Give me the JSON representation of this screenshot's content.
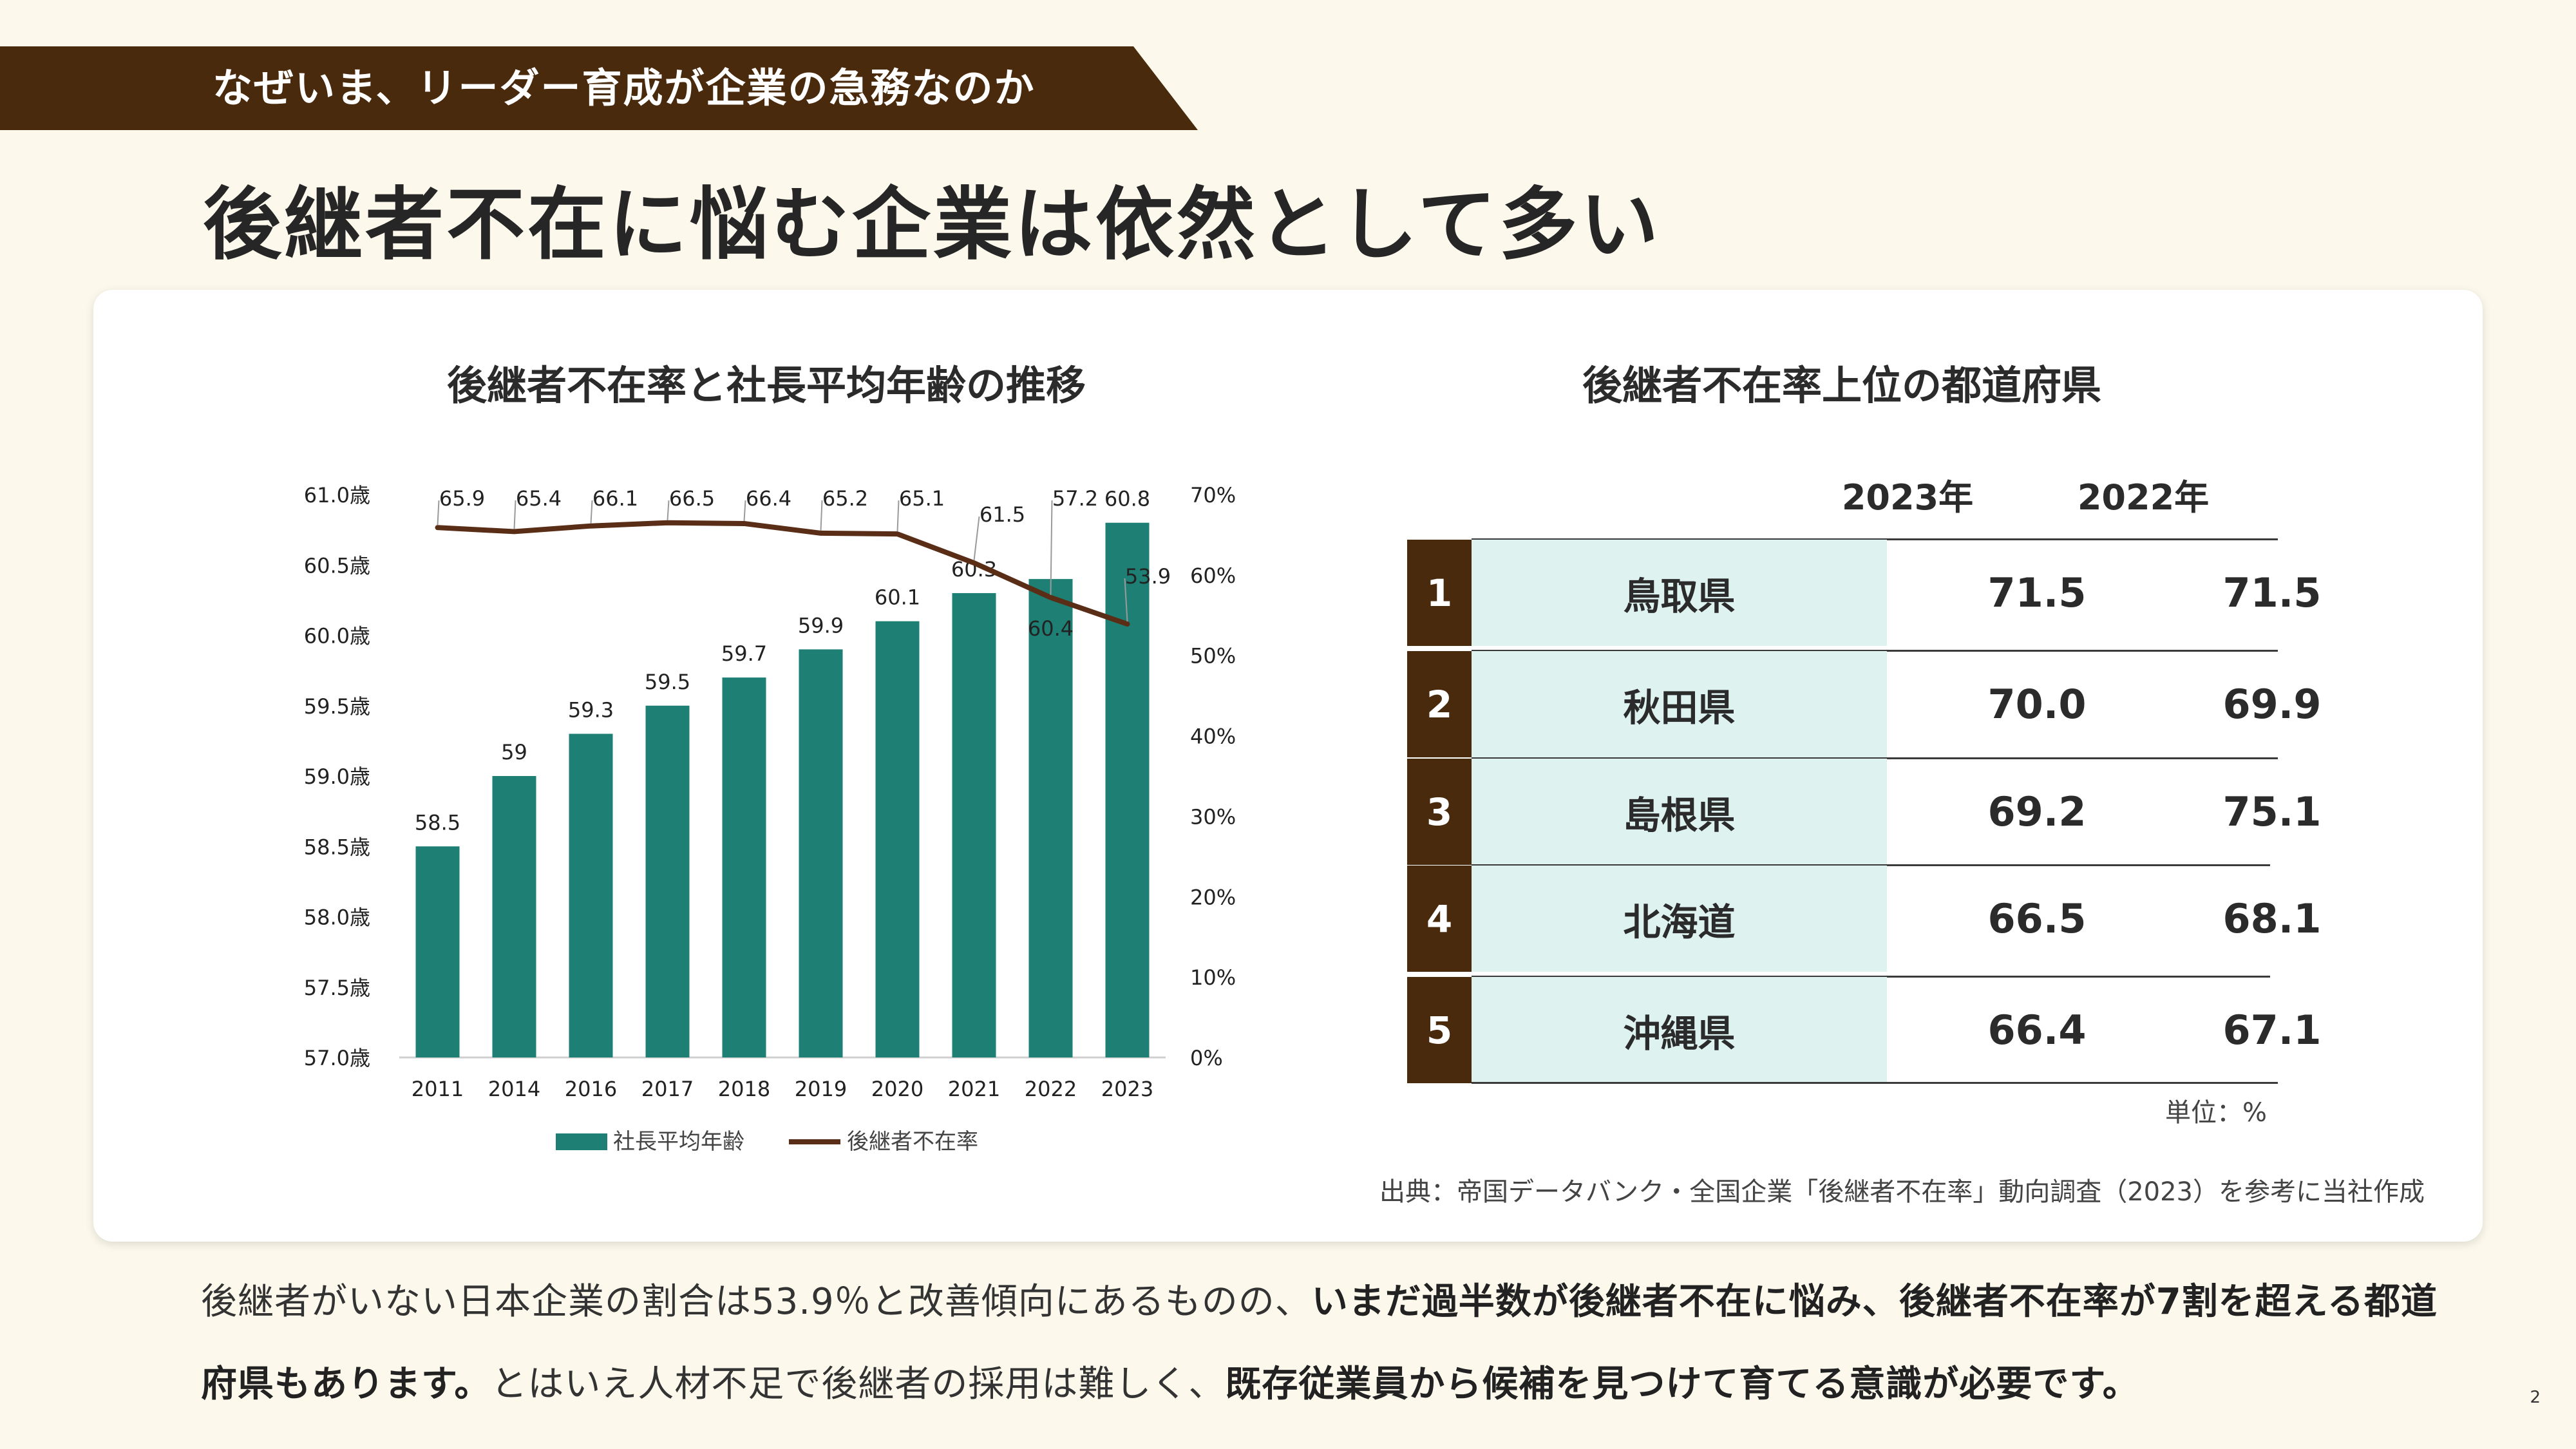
{
  "header": {
    "label": "なぜいま、リーダー育成が企業の急務なのか"
  },
  "title": "後継者不在に悩む企業は依然として多い",
  "chart_data": {
    "type": "bar+line",
    "title": "後継者不在率と社長平均年齢の推移",
    "categories": [
      "2011",
      "2014",
      "2016",
      "2017",
      "2018",
      "2019",
      "2020",
      "2021",
      "2022",
      "2023"
    ],
    "series": [
      {
        "name": "社長平均年齢",
        "type": "bar",
        "axis": "left",
        "color": "#1e8074",
        "values": [
          58.5,
          59,
          59.3,
          59.5,
          59.7,
          59.9,
          60.1,
          60.3,
          60.4,
          60.8
        ],
        "labels": [
          "58.5",
          "59",
          "59.3",
          "59.5",
          "59.7",
          "59.9",
          "60.1",
          "60.3",
          "60.4",
          "60.8"
        ]
      },
      {
        "name": "後継者不在率",
        "type": "line",
        "axis": "right",
        "color": "#5a2e16",
        "values": [
          65.9,
          65.4,
          66.1,
          66.5,
          66.4,
          65.2,
          65.1,
          61.5,
          57.2,
          53.9
        ],
        "labels": [
          "65.9",
          "65.4",
          "66.1",
          "66.5",
          "66.4",
          "65.2",
          "65.1",
          "61.5",
          "57.2",
          "53.9"
        ]
      }
    ],
    "left_axis": {
      "ylim": [
        57.0,
        61.0
      ],
      "ticks": [
        "57.0歳",
        "57.5歳",
        "58.0歳",
        "58.5歳",
        "59.0歳",
        "59.5歳",
        "60.0歳",
        "60.5歳",
        "61.0歳"
      ]
    },
    "right_axis": {
      "ylim": [
        0,
        70
      ],
      "ticks": [
        "0%",
        "10%",
        "20%",
        "30%",
        "40%",
        "50%",
        "60%",
        "70%"
      ]
    },
    "legend": "bottom",
    "grid": false
  },
  "table": {
    "title": "後継者不在率上位の都道府県",
    "headers": [
      "2023年",
      "2022年"
    ],
    "rows": [
      {
        "rank": "1",
        "pref": "鳥取県",
        "v2023": "71.5",
        "v2022": "71.5"
      },
      {
        "rank": "2",
        "pref": "秋田県",
        "v2023": "70.0",
        "v2022": "69.9"
      },
      {
        "rank": "3",
        "pref": "島根県",
        "v2023": "69.2",
        "v2022": "75.1"
      },
      {
        "rank": "4",
        "pref": "北海道",
        "v2023": "66.5",
        "v2022": "68.1"
      },
      {
        "rank": "5",
        "pref": "沖縄県",
        "v2023": "66.4",
        "v2022": "67.1"
      }
    ],
    "unit": "単位：%"
  },
  "source": "出典：帝国データバンク・全国企業「後継者不在率」動向調査（2023）を参考に当社作成",
  "body": {
    "part1": "後継者がいない日本企業の割合は53.9％と改善傾向にあるものの、",
    "part2": "いまだ過半数が後継者不在に悩み、後継者不在率が7割を超える都道府県もあります。",
    "part3": "とはいえ人材不足で後継者の採用は難しく、",
    "part4": "既存従業員から候補を見つけて育てる意識が必要です。"
  },
  "page_number": "2",
  "colors": {
    "banner": "#4a2a0d",
    "bar": "#1e8074",
    "line": "#5a2e16",
    "pref_bg": "#def2f0",
    "background": "#fcf9ec"
  }
}
